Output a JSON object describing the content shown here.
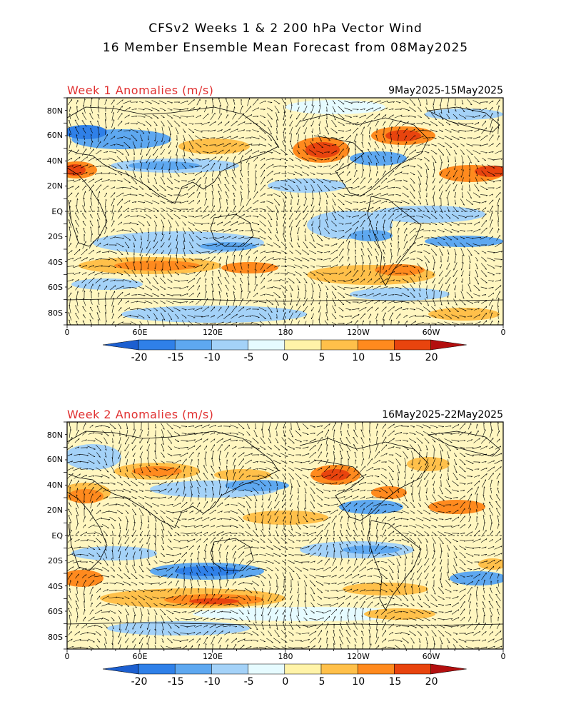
{
  "header": {
    "title_line1": "CFSv2 Weeks 1 & 2 200 hPa Vector Wind",
    "title_line2": "16 Member Ensemble Mean Forecast from 08May2025"
  },
  "panels": [
    {
      "label": "Week 1 Anomalies (m/s)",
      "date_range": "9May2025-15May2025",
      "lat_labels": [
        "80N",
        "60N",
        "40N",
        "20N",
        "EQ",
        "20S",
        "40S",
        "60S",
        "80S"
      ],
      "lon_labels": [
        "0",
        "60E",
        "120E",
        "180",
        "120W",
        "60W",
        "0"
      ]
    },
    {
      "label": "Week 2 Anomalies (m/s)",
      "date_range": "16May2025-22May2025",
      "lat_labels": [
        "80N",
        "60N",
        "40N",
        "20N",
        "EQ",
        "20S",
        "40S",
        "60S",
        "80S"
      ],
      "lon_labels": [
        "0",
        "60E",
        "120E",
        "180",
        "120W",
        "60W",
        "0"
      ]
    }
  ],
  "colorbar": {
    "tick_labels": [
      "-20",
      "-15",
      "-10",
      "-5",
      "0",
      "5",
      "10",
      "15",
      "20"
    ],
    "colors": [
      "#1c5fd0",
      "#2f80e8",
      "#5ea8f0",
      "#a4d2f8",
      "#e6fbff",
      "#fff3a8",
      "#ffc04a",
      "#ff8a1e",
      "#e8440e",
      "#b30f0f"
    ]
  }
}
